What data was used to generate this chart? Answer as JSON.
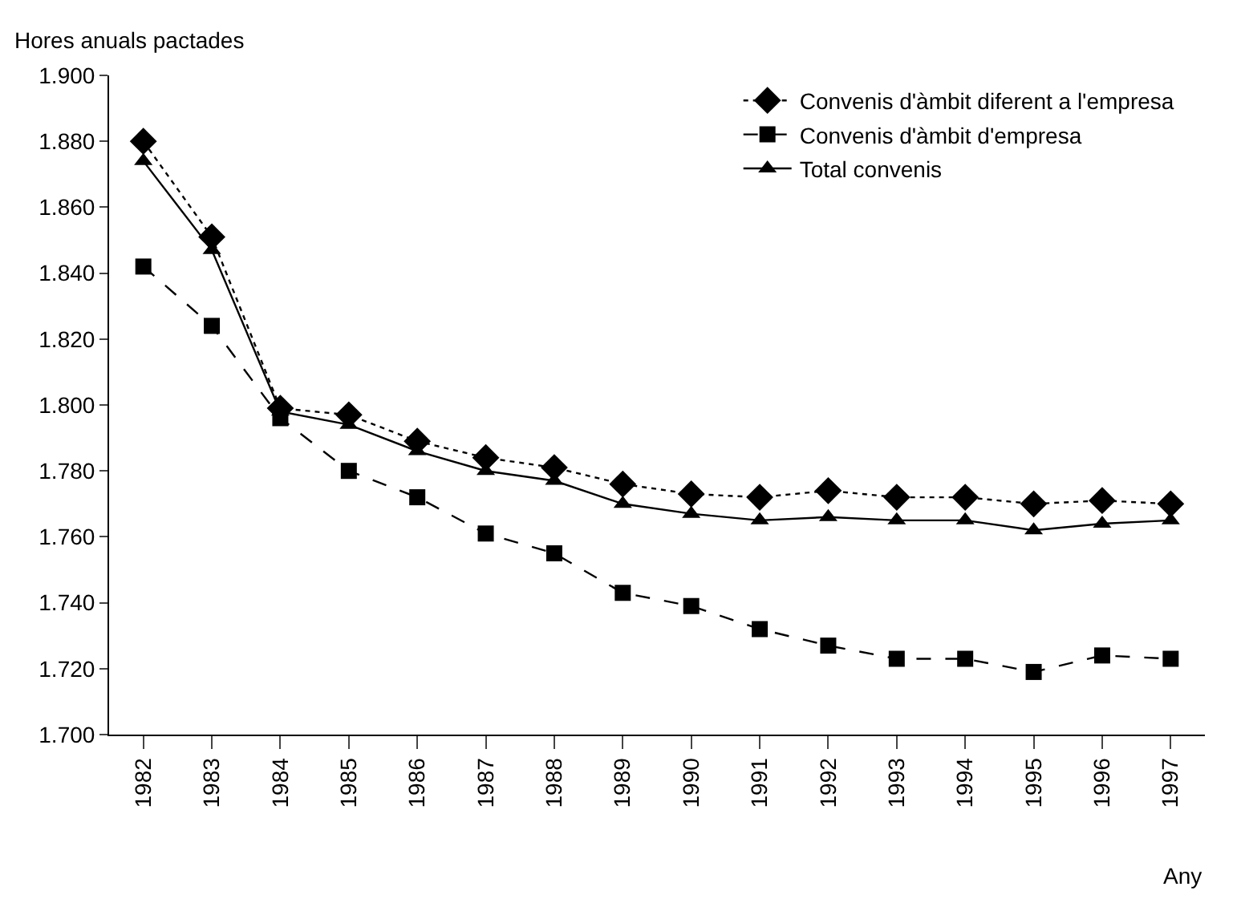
{
  "chart_data": {
    "type": "line",
    "ylabel": "Hores anuals pactades",
    "xlabel": "Any",
    "categories": [
      "1982",
      "1983",
      "1984",
      "1985",
      "1986",
      "1987",
      "1988",
      "1989",
      "1990",
      "1991",
      "1992",
      "1993",
      "1994",
      "1995",
      "1996",
      "1997"
    ],
    "series": [
      {
        "name": "Convenis d'àmbit diferent a l'empresa",
        "color": "#000000",
        "marker": "diamond",
        "line_style": "dotted",
        "values": [
          1880,
          1851,
          1799,
          1797,
          1789,
          1784,
          1781,
          1776,
          1773,
          1772,
          1774,
          1772,
          1772,
          1770,
          1771,
          1770
        ]
      },
      {
        "name": "Convenis d'àmbit d'empresa",
        "color": "#000000",
        "marker": "square",
        "line_style": "dashed",
        "values": [
          1842,
          1824,
          1796,
          1780,
          1772,
          1761,
          1755,
          1743,
          1739,
          1732,
          1727,
          1723,
          1723,
          1719,
          1724,
          1723
        ]
      },
      {
        "name": "Total convenis",
        "color": "#000000",
        "marker": "triangle",
        "line_style": "solid",
        "values": [
          1874,
          1847,
          1798,
          1794,
          1786,
          1780,
          1777,
          1770,
          1767,
          1765,
          1766,
          1765,
          1765,
          1762,
          1764,
          1765
        ]
      }
    ],
    "ylim": [
      1700,
      1900
    ],
    "yticks": [
      {
        "value": 1700,
        "label": "1.700"
      },
      {
        "value": 1720,
        "label": "1.720"
      },
      {
        "value": 1740,
        "label": "1.740"
      },
      {
        "value": 1760,
        "label": "1.760"
      },
      {
        "value": 1780,
        "label": "1.780"
      },
      {
        "value": 1800,
        "label": "1.800"
      },
      {
        "value": 1820,
        "label": "1.820"
      },
      {
        "value": 1840,
        "label": "1.840"
      },
      {
        "value": 1860,
        "label": "1.860"
      },
      {
        "value": 1880,
        "label": "1.880"
      },
      {
        "value": 1900,
        "label": "1.900"
      }
    ],
    "legend": "top right"
  }
}
